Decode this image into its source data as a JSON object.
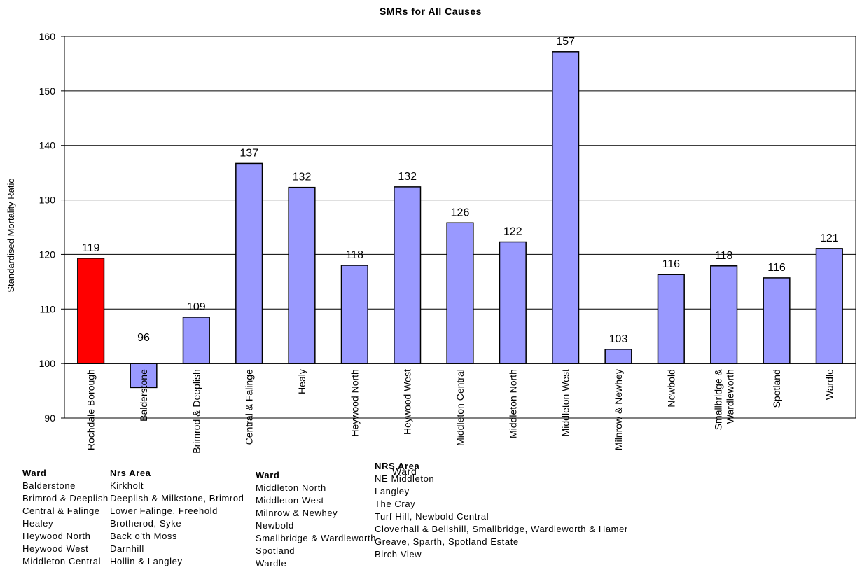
{
  "chart_data": {
    "type": "bar",
    "title": "SMRs for All Causes",
    "ylabel": "Standardised Mortality Ratio",
    "xlabel": "",
    "ylim": [
      90,
      160
    ],
    "yticks": [
      90,
      100,
      110,
      120,
      130,
      140,
      150,
      160
    ],
    "baseline": 100,
    "grid": true,
    "categories": [
      "Rochdale Borough",
      "Balderstone",
      "Brimrod & Deeplish",
      "Central & Falinge",
      "Healy",
      "Heywood North",
      "Heywood West",
      "Middleton Central",
      "Middleton North",
      "Middleton West",
      "Milnrow & Newhey",
      "Newbold",
      "Smallbridge & Wardleworth",
      "Spotland",
      "Wardle"
    ],
    "values": [
      119.3,
      95.6,
      108.5,
      136.7,
      132.3,
      118.0,
      132.4,
      125.8,
      122.3,
      157.2,
      102.6,
      116.3,
      117.9,
      115.7,
      121.1
    ],
    "data_labels": [
      "119",
      "96",
      "109",
      "137",
      "132",
      "118",
      "132",
      "126",
      "122",
      "157",
      "103",
      "116",
      "118",
      "116",
      "121"
    ],
    "colors": [
      "#ff0000",
      "#9999ff",
      "#9999ff",
      "#9999ff",
      "#9999ff",
      "#9999ff",
      "#9999ff",
      "#9999ff",
      "#9999ff",
      "#9999ff",
      "#9999ff",
      "#9999ff",
      "#9999ff",
      "#9999ff",
      "#9999ff"
    ]
  },
  "legend": {
    "col1_head": "Ward",
    "col1": [
      "Balderstone",
      "Brimrod & Deeplish",
      "Central & Falinge",
      "Healey",
      "Heywood North",
      "Heywood West",
      "Middleton Central"
    ],
    "col2_head": "Nrs Area",
    "col2": [
      "Kirkholt",
      "Deeplish & Milkstone, Brimrod",
      "Lower Falinge, Freehold",
      "Brotherod, Syke",
      "Back o'th Moss",
      "Darnhill",
      "Hollin & Langley"
    ],
    "col3_head": "Ward",
    "col3": [
      "Middleton North",
      "Middleton West",
      "Milnrow & Newhey",
      "Newbold",
      "Smallbridge & Wardleworth",
      "Spotland",
      "Wardle"
    ],
    "col4_head": "NRS Area",
    "col4_head_overlap": "Ward",
    "col4": [
      "NE Middleton",
      "Langley",
      "The Cray",
      "Turf Hill, Newbold Central",
      "Cloverhall & Bellshill, Smallbridge, Wardleworth & Hamer",
      "Greave, Sparth, Spotland Estate",
      "Birch View"
    ]
  }
}
